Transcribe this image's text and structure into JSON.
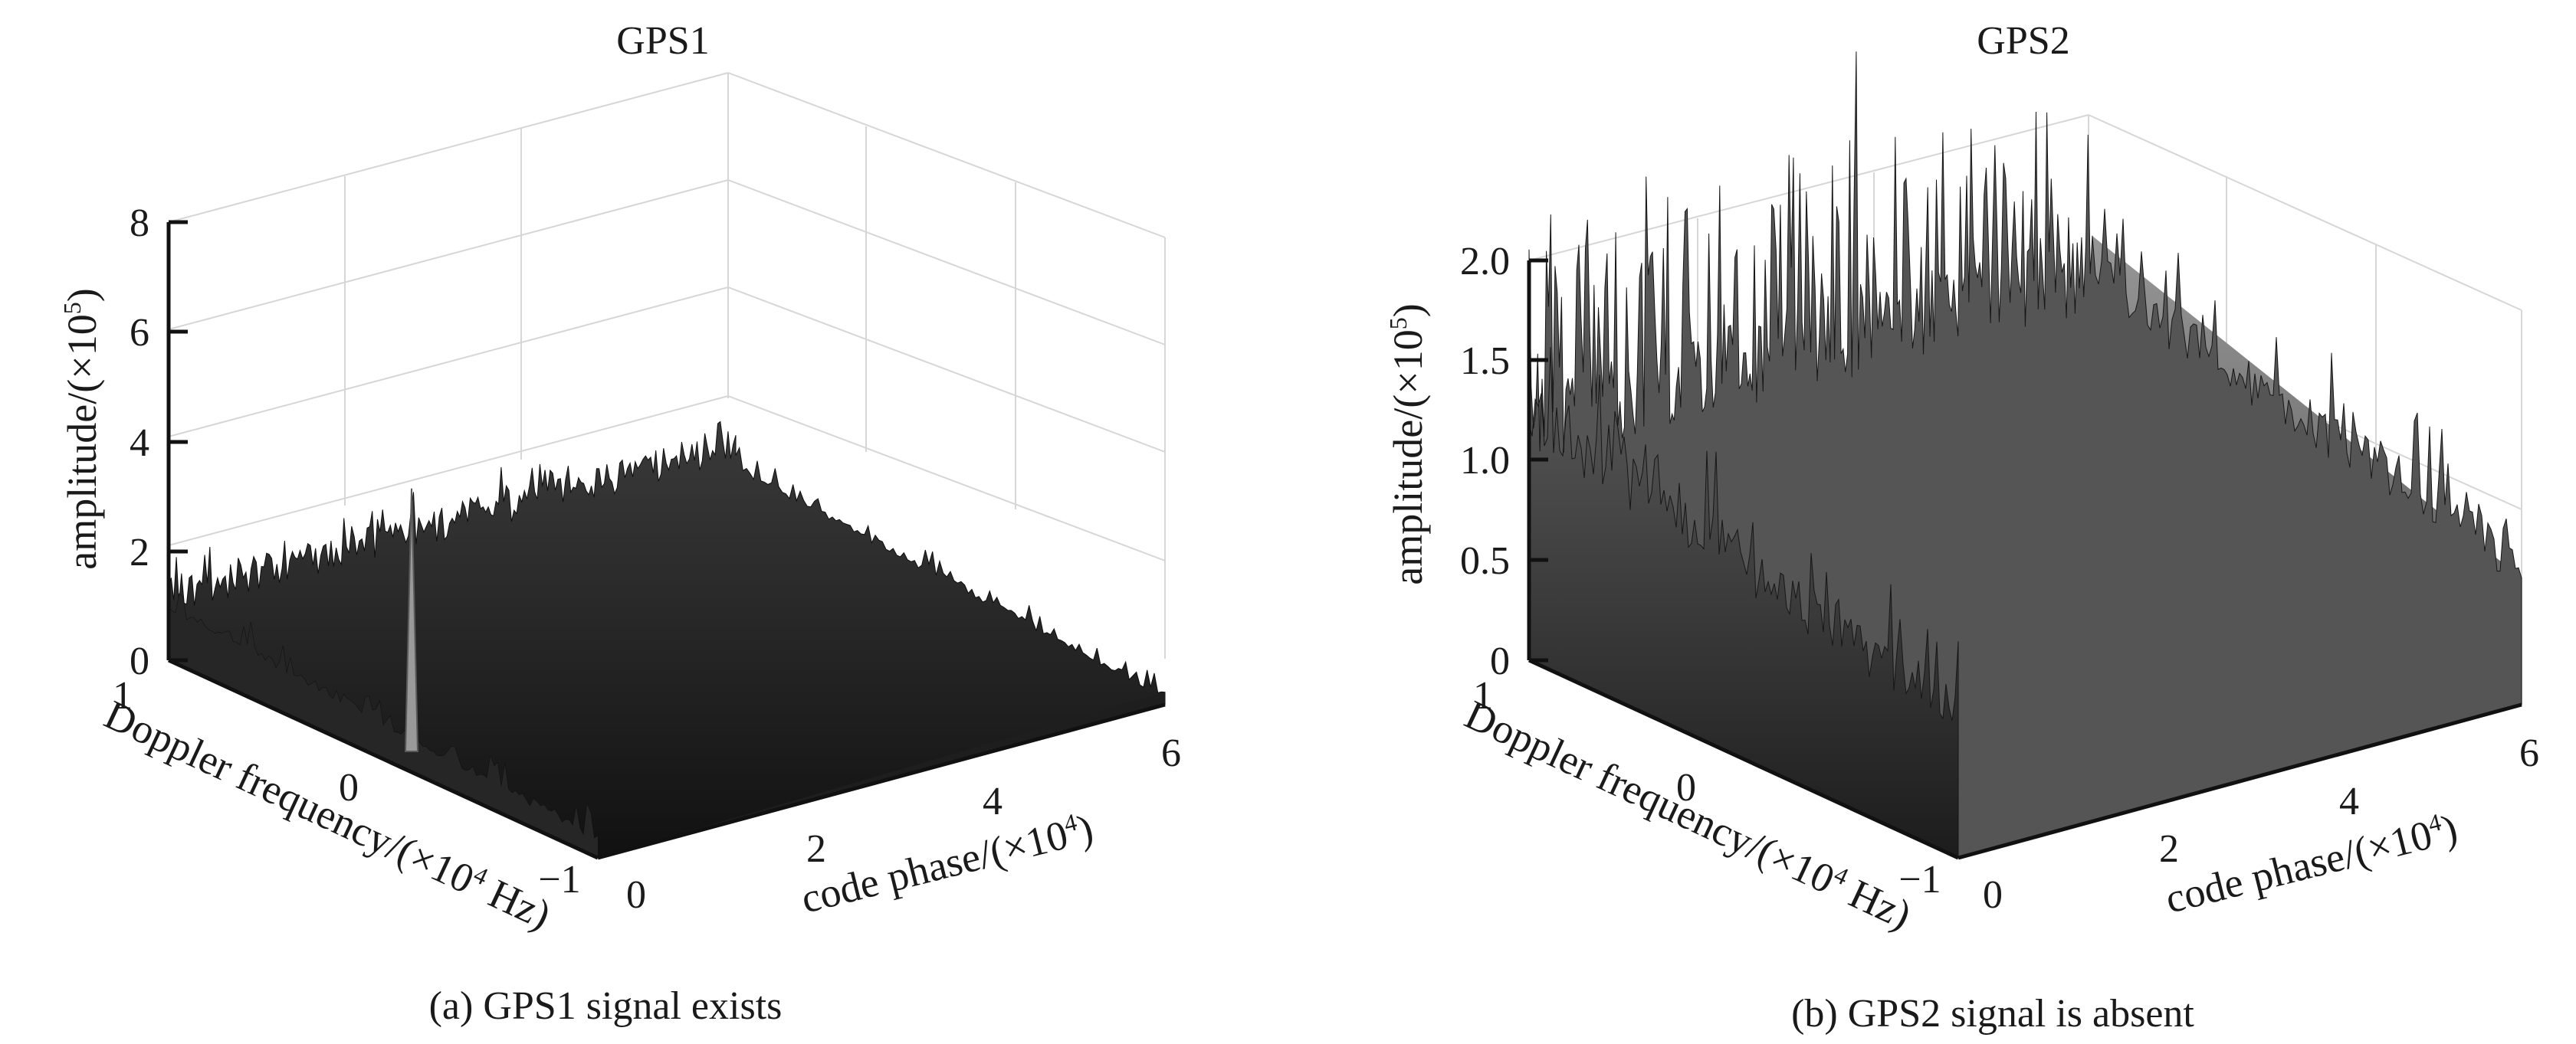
{
  "figure": {
    "panels": [
      {
        "id": "a",
        "title": "GPS1",
        "caption": "(a) GPS1 signal exists",
        "zlabel_main": "amplitude/(×10",
        "zlabel_exp": "5",
        "zlabel_end": ")",
        "xlabel_main": "code phase/(×10",
        "xlabel_exp": "4",
        "xlabel_end": ")",
        "ylabel_main": "Doppler frequency/(×10",
        "ylabel_exp": "4",
        "ylabel_end": " Hz)",
        "zticks": [
          "0",
          "2",
          "4",
          "6",
          "8"
        ],
        "xticks": [
          "0",
          "2",
          "4",
          "6"
        ],
        "yticks": [
          "1",
          "0",
          "−1"
        ]
      },
      {
        "id": "b",
        "title": "GPS2",
        "caption": "(b) GPS2 signal is absent",
        "zlabel_main": "amplitude/(×10",
        "zlabel_exp": "5",
        "zlabel_end": ")",
        "xlabel_main": "code phase/(×10",
        "xlabel_exp": "4",
        "xlabel_end": ")",
        "ylabel_main": "Doppler frequency/(×10",
        "ylabel_exp": "4",
        "ylabel_end": " Hz)",
        "zticks": [
          "0",
          "0.5",
          "1.0",
          "1.5",
          "2.0"
        ],
        "xticks": [
          "0",
          "2",
          "4",
          "6"
        ],
        "yticks": [
          "1",
          "0",
          "−1"
        ]
      }
    ]
  },
  "chart_data": [
    {
      "type": "surface",
      "title": "GPS1",
      "xlabel": "code phase/(×10^4)",
      "ylabel": "Doppler frequency/(×10^4 Hz)",
      "zlabel": "amplitude/(×10^5)",
      "xlim": [
        0,
        6
      ],
      "ylim": [
        -1,
        1
      ],
      "zlim": [
        0,
        8
      ],
      "x_ticks": [
        0,
        2,
        4,
        6
      ],
      "y_ticks": [
        -1,
        0,
        1
      ],
      "z_ticks": [
        0,
        2,
        4,
        6,
        8
      ],
      "grid": true,
      "noise_floor_level": 1.2,
      "peak": {
        "code_phase": 0.3,
        "doppler": 0.0,
        "amplitude": 4.8
      },
      "colormap": "gray"
    },
    {
      "type": "surface",
      "title": "GPS2",
      "xlabel": "code phase/(×10^4)",
      "ylabel": "Doppler frequency/(×10^4 Hz)",
      "zlabel": "amplitude/(×10^5)",
      "xlim": [
        0,
        6
      ],
      "ylim": [
        -1,
        1
      ],
      "zlim": [
        0,
        2.0
      ],
      "x_ticks": [
        0,
        2,
        4,
        6
      ],
      "y_ticks": [
        -1,
        0,
        1
      ],
      "z_ticks": [
        0,
        0.5,
        1.0,
        1.5,
        2.0
      ],
      "grid": true,
      "noise_floor_level": 1.3,
      "max_noise_amplitude": 2.6,
      "peak": null,
      "colormap": "gray"
    }
  ]
}
